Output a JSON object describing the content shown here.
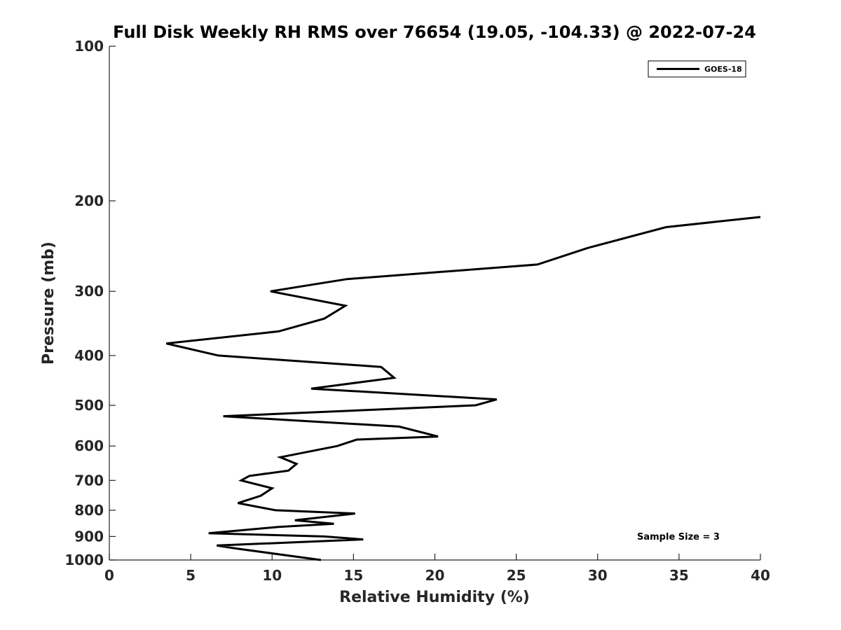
{
  "chart_data": {
    "type": "line",
    "title": "Full Disk Weekly RH RMS over 76654 (19.05, -104.33) @ 2022-07-24",
    "xlabel": "Relative Humidity (%)",
    "ylabel": "Pressure (mb)",
    "xlim": [
      0,
      40
    ],
    "ylim": [
      100,
      1000
    ],
    "y_scale": "log",
    "y_reversed": true,
    "x_ticks": [
      0,
      5,
      10,
      15,
      20,
      25,
      30,
      35,
      40
    ],
    "y_ticks": [
      100,
      200,
      300,
      400,
      500,
      600,
      700,
      800,
      900,
      1000
    ],
    "grid": false,
    "legend_position": "top-right",
    "series": [
      {
        "name": "GOES-18",
        "color": "#000000",
        "points": [
          [
            40.0,
            215
          ],
          [
            34.2,
            225
          ],
          [
            29.4,
            247
          ],
          [
            26.3,
            266
          ],
          [
            14.6,
            284
          ],
          [
            9.9,
            300
          ],
          [
            14.5,
            320
          ],
          [
            13.2,
            339
          ],
          [
            10.4,
            359
          ],
          [
            3.5,
            379
          ],
          [
            6.7,
            400
          ],
          [
            16.7,
            421
          ],
          [
            17.5,
            442
          ],
          [
            12.4,
            464
          ],
          [
            23.8,
            487
          ],
          [
            22.5,
            500
          ],
          [
            7.0,
            525
          ],
          [
            17.8,
            550
          ],
          [
            20.2,
            575
          ],
          [
            15.2,
            583
          ],
          [
            14.0,
            600
          ],
          [
            10.5,
            631
          ],
          [
            11.5,
            650
          ],
          [
            11.0,
            670
          ],
          [
            8.6,
            686
          ],
          [
            8.1,
            700
          ],
          [
            10.0,
            725
          ],
          [
            9.3,
            750
          ],
          [
            7.9,
            775
          ],
          [
            10.2,
            800
          ],
          [
            15.1,
            812
          ],
          [
            11.4,
            837
          ],
          [
            13.8,
            850
          ],
          [
            10.4,
            862
          ],
          [
            6.1,
            887
          ],
          [
            13.2,
            900
          ],
          [
            15.6,
            912
          ],
          [
            6.6,
            937
          ],
          [
            7.8,
            950
          ],
          [
            13.0,
            1000
          ]
        ]
      }
    ],
    "annotation": "Sample Size = 3"
  }
}
